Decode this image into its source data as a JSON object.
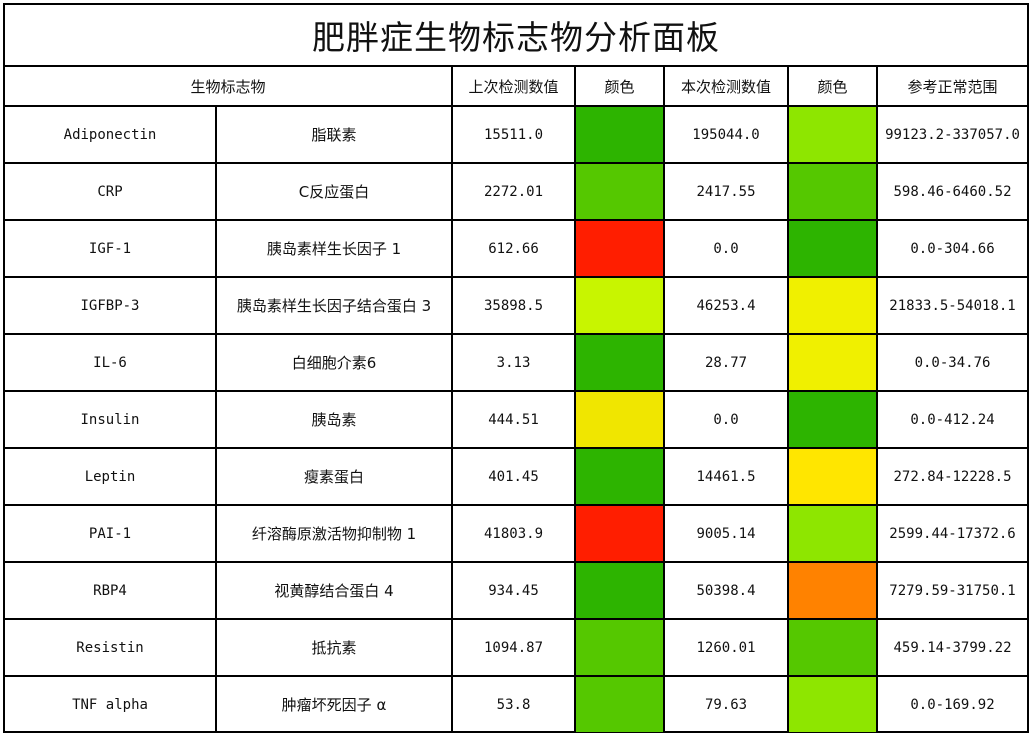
{
  "title": "肥胖症生物标志物分析面板",
  "headers": {
    "marker": "生物标志物",
    "prev_value": "上次检测数值",
    "color1": "颜色",
    "curr_value": "本次检测数值",
    "color2": "颜色",
    "range": "参考正常范围"
  },
  "rows": [
    {
      "en": "Adiponectin",
      "cn": "脂联素",
      "prev": "15511.0",
      "prev_color": "#2db400",
      "curr": "195044.0",
      "curr_color": "#8ee600",
      "range": "99123.2-337057.0"
    },
    {
      "en": "CRP",
      "cn": "C反应蛋白",
      "prev": "2272.01",
      "prev_color": "#55c800",
      "curr": "2417.55",
      "curr_color": "#55c800",
      "range": "598.46-6460.52"
    },
    {
      "en": "IGF-1",
      "cn": "胰岛素样生长因子 1",
      "prev": "612.66",
      "prev_color": "#ff1e00",
      "curr": "0.0",
      "curr_color": "#2db400",
      "range": "0.0-304.66"
    },
    {
      "en": "IGFBP-3",
      "cn": "胰岛素样生长因子结合蛋白 3",
      "prev": "35898.5",
      "prev_color": "#c8f500",
      "curr": "46253.4",
      "curr_color": "#f0f000",
      "range": "21833.5-54018.1"
    },
    {
      "en": "IL-6",
      "cn": "白细胞介素6",
      "prev": "3.13",
      "prev_color": "#2db400",
      "curr": "28.77",
      "curr_color": "#f0f000",
      "range": "0.0-34.76"
    },
    {
      "en": "Insulin",
      "cn": "胰岛素",
      "prev": "444.51",
      "prev_color": "#f0e600",
      "curr": "0.0",
      "curr_color": "#2db400",
      "range": "0.0-412.24"
    },
    {
      "en": "Leptin",
      "cn": "瘦素蛋白",
      "prev": "401.45",
      "prev_color": "#2db400",
      "curr": "14461.5",
      "curr_color": "#ffe600",
      "range": "272.84-12228.5"
    },
    {
      "en": "PAI-1",
      "cn": "纤溶酶原激活物抑制物 1",
      "prev": "41803.9",
      "prev_color": "#ff1e00",
      "curr": "9005.14",
      "curr_color": "#8ee600",
      "range": "2599.44-17372.6"
    },
    {
      "en": "RBP4",
      "cn": "视黄醇结合蛋白 4",
      "prev": "934.45",
      "prev_color": "#2db400",
      "curr": "50398.4",
      "curr_color": "#ff8200",
      "range": "7279.59-31750.1"
    },
    {
      "en": "Resistin",
      "cn": "抵抗素",
      "prev": "1094.87",
      "prev_color": "#55c800",
      "curr": "1260.01",
      "curr_color": "#55c800",
      "range": "459.14-3799.22"
    },
    {
      "en": "TNF alpha",
      "cn": "肿瘤坏死因子 α",
      "prev": "53.8",
      "prev_color": "#55c800",
      "curr": "79.63",
      "curr_color": "#8ee600",
      "range": "0.0-169.92"
    }
  ]
}
